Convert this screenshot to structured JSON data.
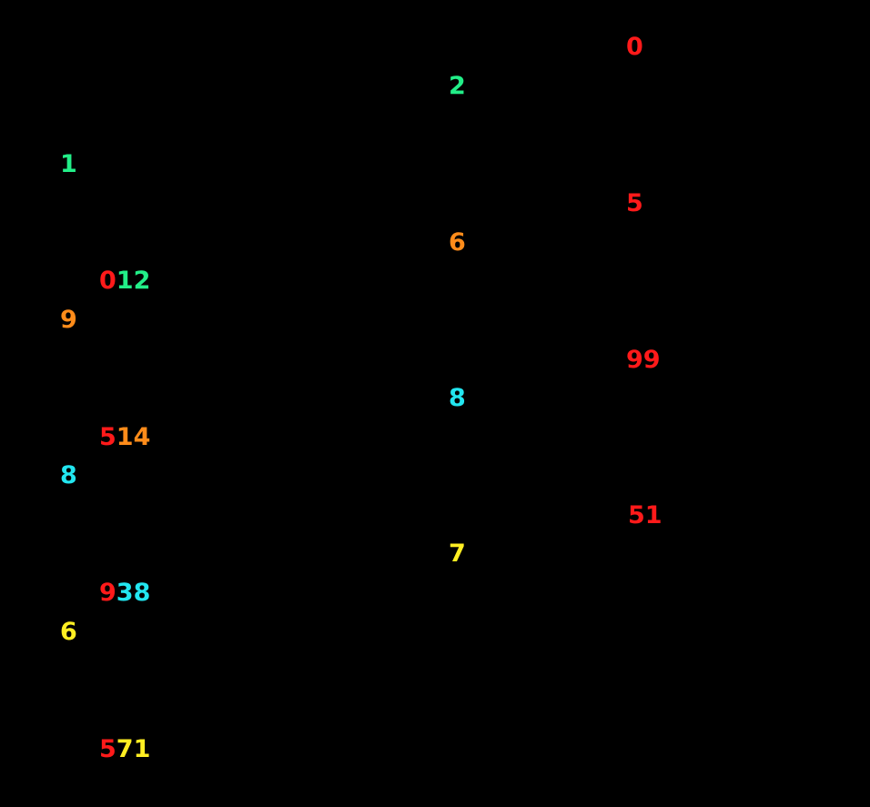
{
  "left_column": {
    "labels": [
      "1",
      "9",
      "8",
      "6"
    ],
    "pairs": [
      {
        "head": "0",
        "tail": "12"
      },
      {
        "head": "5",
        "tail": "14"
      },
      {
        "head": "9",
        "tail": "38"
      },
      {
        "head": "5",
        "tail": "71"
      }
    ]
  },
  "middle_column": [
    "2",
    "6",
    "8",
    "7"
  ],
  "right_column": [
    "0",
    "5",
    "99",
    "51"
  ]
}
